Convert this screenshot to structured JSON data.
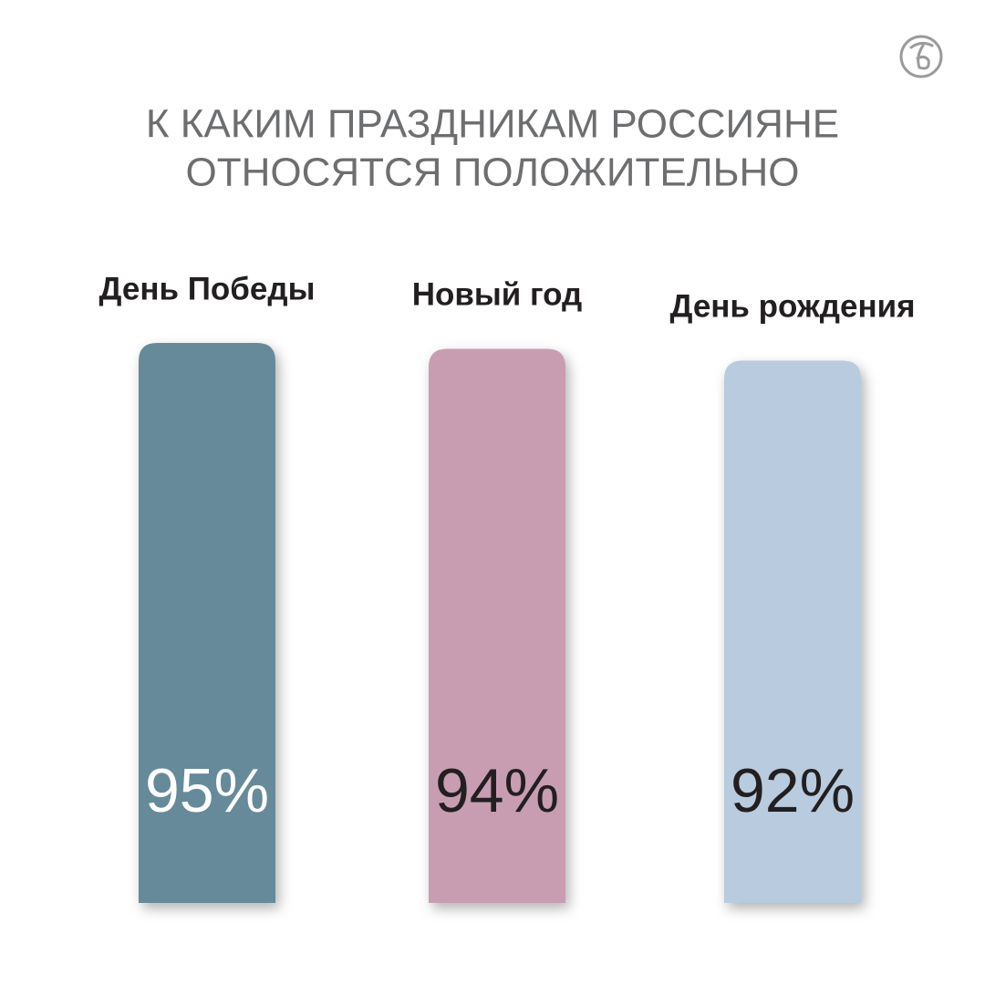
{
  "chart_data": {
    "type": "bar",
    "title": [
      "К КАКИМ ПРАЗДНИКАМ РОССИЯНЕ",
      "ОТНОСЯТСЯ ПОЛОЖИТЕЛЬНО"
    ],
    "categories": [
      "День Победы",
      "Новый год",
      "День рождения"
    ],
    "values": [
      95,
      94,
      92
    ],
    "value_labels": [
      "95%",
      "94%",
      "92%"
    ],
    "colors": [
      "#668a99",
      "#c89db1",
      "#b8cbdf"
    ],
    "value_label_colors": [
      "#ffffff",
      "#231f20",
      "#231f20"
    ]
  }
}
